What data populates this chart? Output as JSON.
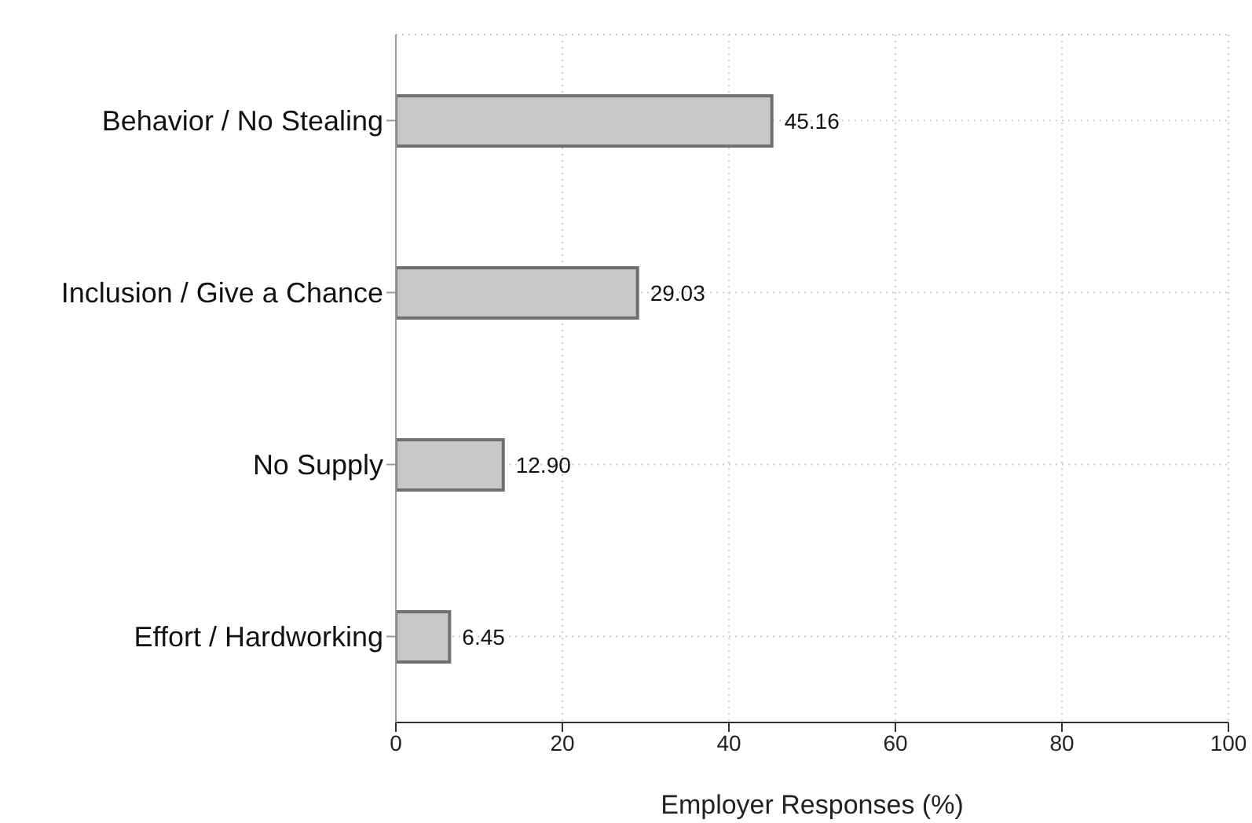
{
  "chart_data": {
    "type": "bar",
    "orientation": "horizontal",
    "xlabel": "Employer Responses (%)",
    "categories": [
      "Behavior / No Stealing",
      "Inclusion / Give a Chance",
      "No Supply",
      "Effort / Hardworking"
    ],
    "values": [
      45.16,
      29.03,
      12.9,
      6.45
    ],
    "value_labels": [
      "45.16",
      "29.03",
      "12.90",
      "6.45"
    ],
    "color": "#c8c8c8",
    "xlim": [
      0,
      100
    ],
    "xticks": [
      0,
      20,
      40,
      60,
      80,
      100
    ],
    "grid": true
  }
}
